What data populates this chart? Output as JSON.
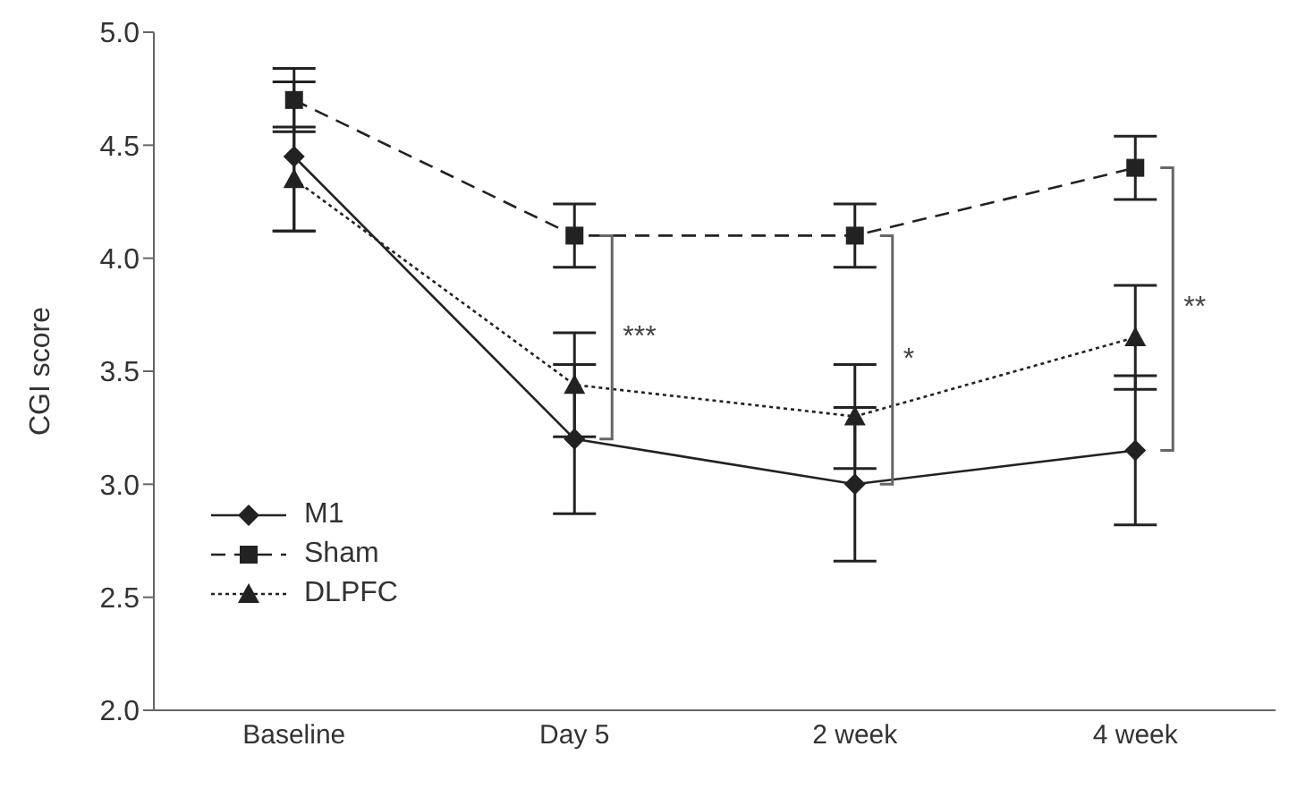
{
  "chart_data": {
    "type": "line",
    "ylabel": "CGI score",
    "categories": [
      "Baseline",
      "Day 5",
      "2 week",
      "4 week"
    ],
    "ylim": [
      2.0,
      5.0
    ],
    "yticks": [
      {
        "value": 2,
        "label": "2.0"
      },
      {
        "value": 2.5,
        "label": "2.5"
      },
      {
        "value": 3,
        "label": "3.0"
      },
      {
        "value": 3.5,
        "label": "3.5"
      },
      {
        "value": 4,
        "label": "4.0"
      },
      {
        "value": 4.5,
        "label": "4.5"
      },
      {
        "value": 5,
        "label": "5.0"
      }
    ],
    "series": [
      {
        "name": "M1",
        "color": "#222222",
        "marker": "diamond",
        "line_style": "solid",
        "values": [
          4.45,
          3.2,
          3.0,
          3.15
        ],
        "errors": [
          0.33,
          0.33,
          0.34,
          0.33
        ]
      },
      {
        "name": "Sham",
        "color": "#222222",
        "marker": "square",
        "line_style": "dashed",
        "values": [
          4.7,
          4.1,
          4.1,
          4.4
        ],
        "errors": [
          0.14,
          0.14,
          0.14,
          0.14
        ]
      },
      {
        "name": "DLPFC",
        "color": "#222222",
        "marker": "triangle",
        "line_style": "dotted",
        "values": [
          4.35,
          3.44,
          3.3,
          3.65
        ],
        "errors": [
          0.23,
          0.23,
          0.23,
          0.23
        ]
      }
    ],
    "annotations": [
      {
        "text": "***",
        "x": "Day 5",
        "y": 3.65
      },
      {
        "text": "*",
        "x": "2 week",
        "y": 3.55
      },
      {
        "text": "**",
        "x": "4 week",
        "y": 3.78
      }
    ],
    "legend": "bottom left",
    "grid": false
  }
}
